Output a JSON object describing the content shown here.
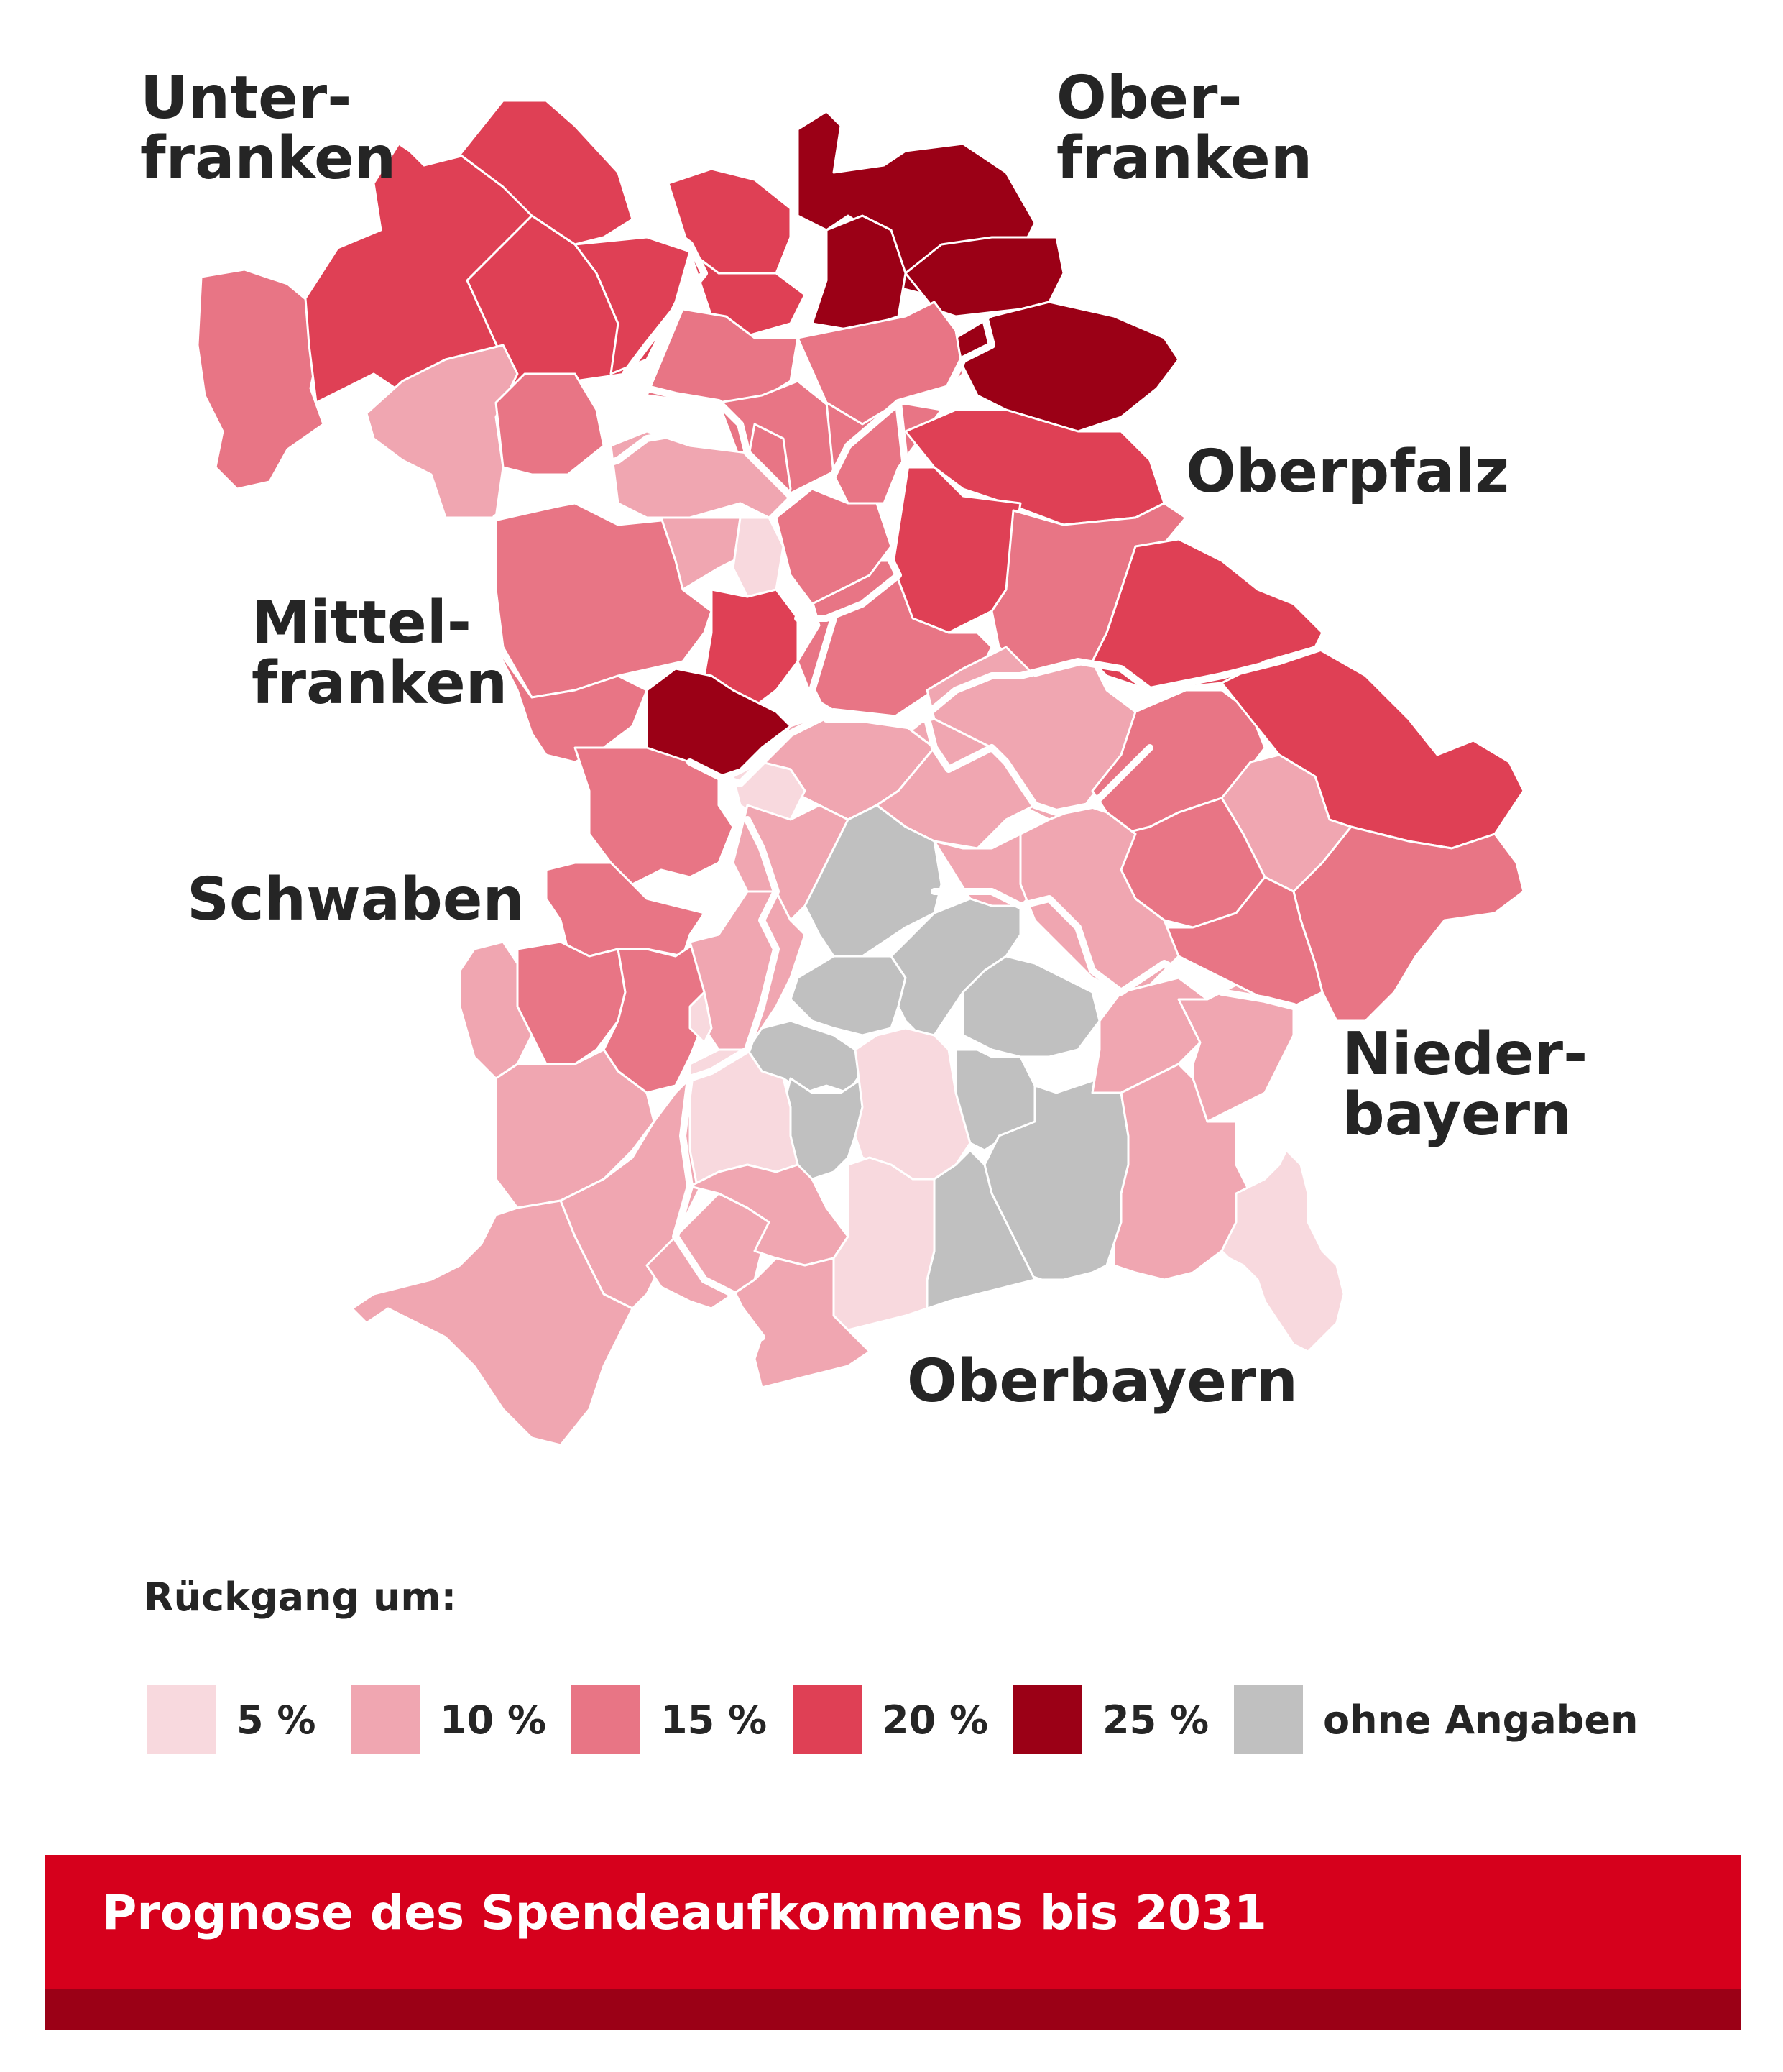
{
  "colors": {
    "p5": "#f8d9de",
    "p10": "#f0a6b1",
    "p15": "#e87585",
    "p20": "#df4055",
    "p25": "#9b0016",
    "na": "#c0c0c0",
    "footer": "#d6001c",
    "footer_dark": "#9b0016"
  },
  "regions": [
    {
      "name": "Unterfranken",
      "label": "Unter-\nfranken"
    },
    {
      "name": "Oberfranken",
      "label": "Ober-\nfranken"
    },
    {
      "name": "Oberpfalz",
      "label": "Oberpfalz"
    },
    {
      "name": "Mittelfranken",
      "label": "Mittel-\nfranken"
    },
    {
      "name": "Schwaben",
      "label": "Schwaben"
    },
    {
      "name": "Niederbayern",
      "label": "Nieder-\nbayern"
    },
    {
      "name": "Oberbayern",
      "label": "Oberbayern"
    }
  ],
  "legend": {
    "title": "Rückgang um:",
    "items": [
      {
        "label": "5 %",
        "category": "p5"
      },
      {
        "label": "10 %",
        "category": "p10"
      },
      {
        "label": "15 %",
        "category": "p15"
      },
      {
        "label": "20 %",
        "category": "p20"
      },
      {
        "label": "25 %",
        "category": "p25"
      },
      {
        "label": "ohne Angaben",
        "category": "na"
      }
    ]
  },
  "footer": {
    "title": "Prognose des Spendeaufkommens bis 2031"
  }
}
